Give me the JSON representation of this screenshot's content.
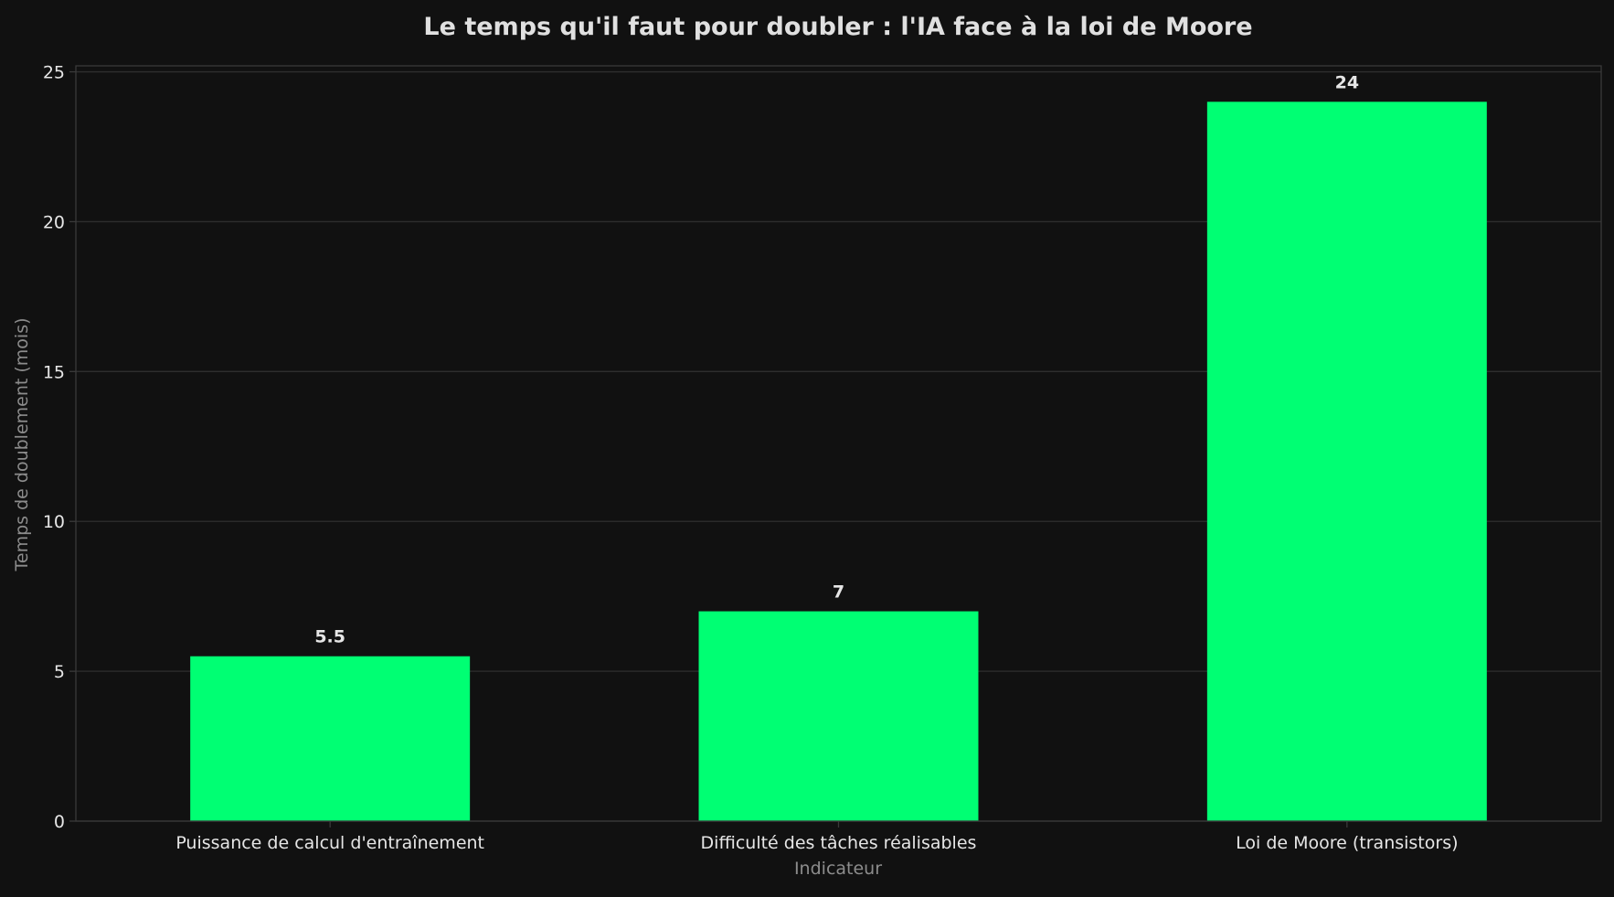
{
  "colors": {
    "background": "#111111",
    "plot_background": "#111111",
    "bar": "#00ff73",
    "grid": "#2e2e2e",
    "axis": "#3a3a3a",
    "text": "#e6e6e6",
    "muted_text": "#8c8c8c"
  },
  "chart_data": {
    "type": "bar",
    "title": "Le temps qu'il faut pour doubler : l'IA face à la loi de Moore",
    "xlabel": "Indicateur",
    "ylabel": "Temps de doublement (mois)",
    "categories": [
      "Puissance de calcul d'entraînement",
      "Difficulté des tâches réalisables",
      "Loi de Moore (transistors)"
    ],
    "values": [
      5.5,
      7,
      24
    ],
    "value_labels": [
      "5.5",
      "7",
      "24"
    ],
    "ylim": [
      0,
      25.2
    ],
    "yticks": [
      0,
      5,
      10,
      15,
      20,
      25
    ],
    "grid": true,
    "legend": false
  }
}
